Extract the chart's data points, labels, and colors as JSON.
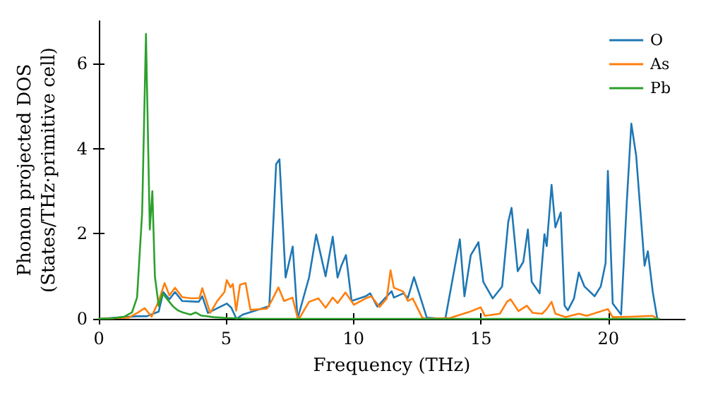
{
  "chart_data": {
    "type": "line",
    "xlabel": "Frequency (THz)",
    "ylabel": "Phonon projected DOS\n(States/THz·primitive cell)",
    "xlim": [
      0,
      23
    ],
    "ylim": [
      0,
      7
    ],
    "xticks": [
      0,
      5,
      10,
      15,
      20
    ],
    "yticks": [
      0,
      2,
      4,
      6
    ],
    "grid": false,
    "legend": "top right",
    "marker": "none",
    "line_style": "solid",
    "series": [
      {
        "name": "O",
        "color": "#1f77b4",
        "x": [
          0,
          1.5,
          1.88,
          2.35,
          2.53,
          2.77,
          2.99,
          3.27,
          3.92,
          4.06,
          4.28,
          5.02,
          5.2,
          5.4,
          5.65,
          6.69,
          6.96,
          7.09,
          7.33,
          7.61,
          7.8,
          8.25,
          8.53,
          8.9,
          9.18,
          9.37,
          9.52,
          9.7,
          9.92,
          10.47,
          10.65,
          10.93,
          11.49,
          11.58,
          11.95,
          12.13,
          12.37,
          12.87,
          13.5,
          13.6,
          14.17,
          14.35,
          14.6,
          14.9,
          15.09,
          15.46,
          15.83,
          16.07,
          16.2,
          16.44,
          16.66,
          16.84,
          16.99,
          17.3,
          17.49,
          17.58,
          17.77,
          17.92,
          18.13,
          18.28,
          18.41,
          18.65,
          18.84,
          19.06,
          19.46,
          19.7,
          19.89,
          19.98,
          20.17,
          20.5,
          20.72,
          20.9,
          21.09,
          21.42,
          21.55,
          21.74,
          21.92
        ],
        "values": [
          0,
          0.06,
          0.06,
          0.17,
          0.63,
          0.46,
          0.63,
          0.42,
          0.4,
          0.53,
          0.14,
          0.36,
          0.26,
          0,
          0.1,
          0.3,
          3.64,
          3.75,
          0.97,
          1.7,
          0,
          0.97,
          1.98,
          1,
          1.93,
          0.97,
          1.25,
          1.5,
          0.42,
          0.53,
          0.6,
          0.29,
          0.65,
          0.5,
          0.6,
          0.49,
          0.98,
          0.03,
          0,
          0,
          1.87,
          0.53,
          1.5,
          1.8,
          0.87,
          0.48,
          0.76,
          2.28,
          2.61,
          1.12,
          1.34,
          2.1,
          0.87,
          0.6,
          1.99,
          1.71,
          3.15,
          2.15,
          2.5,
          0.31,
          0.2,
          0.48,
          1.09,
          0.76,
          0.53,
          0.76,
          1.31,
          3.48,
          0.36,
          0.1,
          2.72,
          4.59,
          3.84,
          1.25,
          1.59,
          0.64,
          0
        ]
      },
      {
        "name": "As",
        "color": "#ff7f0e",
        "x": [
          0,
          1.18,
          1.51,
          1.8,
          2.07,
          2.35,
          2.58,
          2.77,
          2.99,
          3.27,
          3.64,
          3.95,
          4.06,
          4.19,
          4.37,
          4.65,
          4.93,
          5.02,
          5.17,
          5.26,
          5.39,
          5.54,
          5.76,
          5.95,
          6.6,
          6.78,
          7.05,
          7.27,
          7.6,
          7.8,
          7.89,
          8.25,
          8.62,
          8.9,
          9.18,
          9.37,
          9.68,
          10.01,
          10.47,
          10.69,
          11.02,
          11.3,
          11.45,
          11.58,
          11.95,
          12.13,
          12.32,
          12.69,
          12.87,
          13.79,
          14.53,
          14.99,
          15.15,
          15.74,
          16.02,
          16.16,
          16.47,
          16.8,
          17.03,
          17.4,
          17.58,
          17.77,
          17.92,
          18.32,
          18.84,
          19.15,
          19.98,
          20.17,
          20.9,
          21.74,
          21.92
        ],
        "values": [
          0,
          0.03,
          0.14,
          0.25,
          0.05,
          0.42,
          0.84,
          0.55,
          0.73,
          0.51,
          0.48,
          0.49,
          0.72,
          0.48,
          0.14,
          0.42,
          0.63,
          0.91,
          0.74,
          0.82,
          0.19,
          0.8,
          0.84,
          0.21,
          0.24,
          0.42,
          0.74,
          0.42,
          0.5,
          0.03,
          0.03,
          0.4,
          0.48,
          0.26,
          0.5,
          0.37,
          0.62,
          0.33,
          0.48,
          0.53,
          0.28,
          0.48,
          1.14,
          0.73,
          0.64,
          0.42,
          0.48,
          0.03,
          0,
          0.02,
          0.16,
          0.27,
          0.07,
          0.12,
          0.4,
          0.46,
          0.18,
          0.31,
          0.14,
          0.12,
          0.23,
          0.4,
          0.12,
          0.04,
          0.12,
          0.07,
          0.23,
          0.04,
          0.05,
          0.07,
          0
        ]
      },
      {
        "name": "Pb",
        "color": "#2ca02c",
        "x": [
          0,
          0.5,
          1,
          1.3,
          1.5,
          1.7,
          1.85,
          2.0,
          2.1,
          2.2,
          2.35,
          2.5,
          2.7,
          2.9,
          3.1,
          3.3,
          3.6,
          3.8,
          4,
          4.5,
          5,
          6,
          22
        ],
        "values": [
          0,
          0.01,
          0.05,
          0.15,
          0.5,
          2.5,
          6.7,
          2.1,
          3.0,
          1.0,
          0.3,
          0.6,
          0.45,
          0.3,
          0.2,
          0.15,
          0.1,
          0.15,
          0.08,
          0.04,
          0.02,
          0,
          0
        ]
      }
    ]
  }
}
